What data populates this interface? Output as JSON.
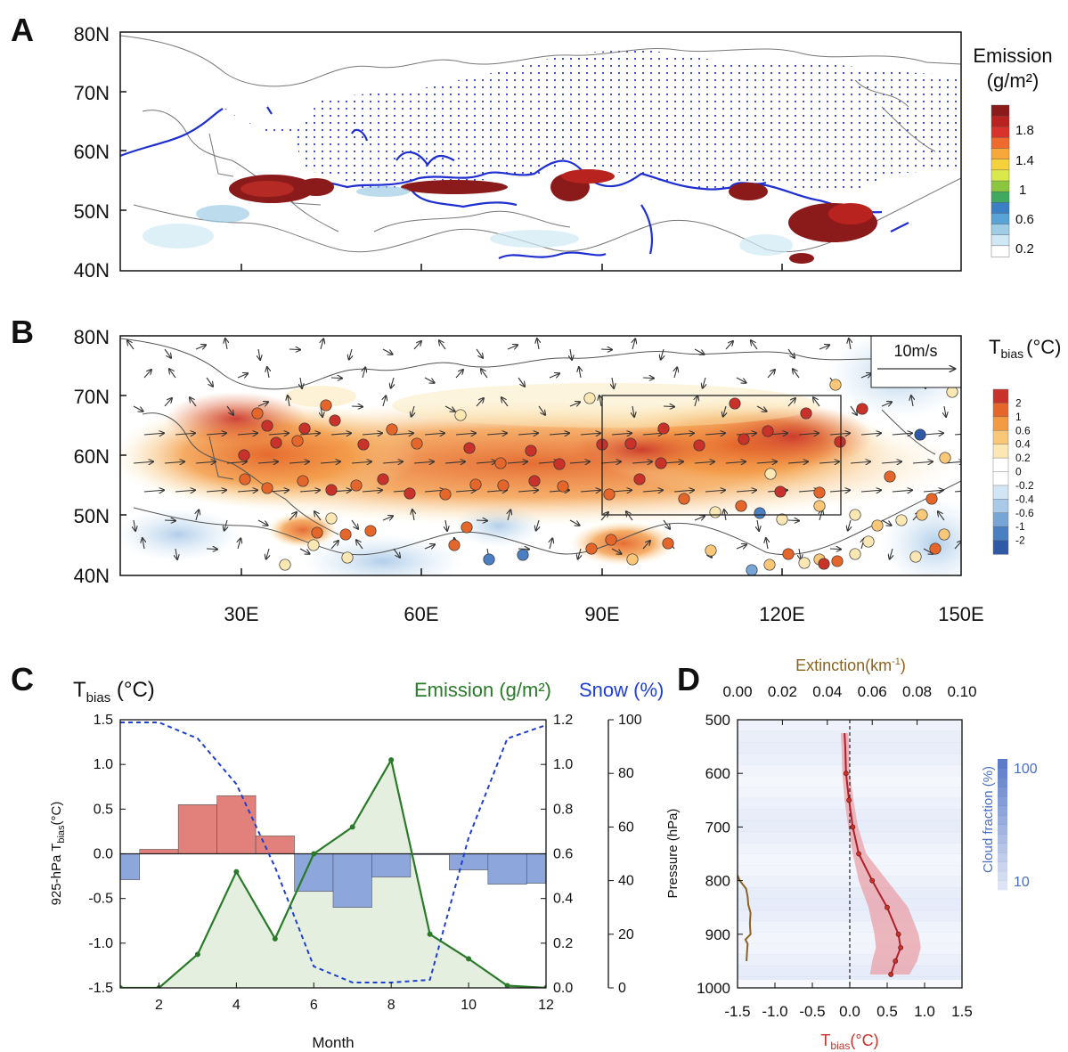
{
  "panel_letters": [
    "A",
    "B",
    "C",
    "D"
  ],
  "colors": {
    "emission_colorbar": [
      "#ffffff",
      "#cfe8f3",
      "#9fcde6",
      "#5aa3d6",
      "#3b7fc4",
      "#41a85f",
      "#8cc63f",
      "#d9e84a",
      "#f5d23c",
      "#f7a83a",
      "#ee6a2d",
      "#d8322a",
      "#b8231f",
      "#8b1a1a"
    ],
    "tbias_colorbar": [
      "#2d59a6",
      "#4a7fc1",
      "#77a5d6",
      "#a9c9e8",
      "#d2e5f4",
      "#ffffff",
      "#ffffff",
      "#fbe7b3",
      "#f8c778",
      "#f39a45",
      "#e4662a",
      "#c8322a"
    ],
    "snow_line": "#1f3fd1",
    "emission_line": "#2a7a2a",
    "emission_fill": "#e4efe0",
    "bar_pos": "#e2807b",
    "bar_neg": "#8da6dc",
    "profile_line": "#b0202a",
    "profile_band": "#eaa0a8",
    "extinction_line": "#8a6420",
    "cloud_bg": "#c9d5f2"
  },
  "map_a": {
    "lat_labels": [
      "80N",
      "70N",
      "60N",
      "50N",
      "40N"
    ],
    "colorbar_title": "Emission",
    "colorbar_unit": "(g/m²)",
    "colorbar_ticks": [
      "1.8",
      "1.4",
      "1",
      "0.6",
      "0.2"
    ]
  },
  "map_b": {
    "lat_labels": [
      "80N",
      "70N",
      "60N",
      "50N",
      "40N"
    ],
    "lon_labels": [
      "30E",
      "60E",
      "90E",
      "120E",
      "150E"
    ],
    "colorbar_title": "T",
    "colorbar_sub": "bias",
    "colorbar_unit": "(°C)",
    "colorbar_ticks": [
      "2",
      "1",
      "0.6",
      "0.4",
      "0.2",
      "0",
      "-0.2",
      "-0.4",
      "-0.6",
      "-1",
      "-2"
    ],
    "vector_key": "10m/s"
  },
  "chart_data": [
    {
      "type": "bar",
      "panel": "C",
      "xlabel": "Month",
      "ylabel": "925-hPa T",
      "ylabel_sub": "bias",
      "ylabel_unit": "(°C)",
      "title_left": "T",
      "title_left_sub": "bias",
      "title_left_unit": " (°C)",
      "title_emission": "Emission (g/m²)",
      "title_snow": "Snow (%)",
      "x_ticks": [
        "2",
        "4",
        "6",
        "8",
        "10",
        "12"
      ],
      "y_left_ticks": [
        "1.5",
        "1.0",
        "0.5",
        "0.0",
        "-0.5",
        "-1.0",
        "-1.5"
      ],
      "y_mid_ticks": [
        "1.2",
        "1.0",
        "0.8",
        "0.6",
        "0.4",
        "0.2",
        "0.0"
      ],
      "y_right_ticks": [
        "100",
        "80",
        "60",
        "40",
        "20",
        "0"
      ],
      "ylim_left": [
        -1.5,
        1.5
      ],
      "ylim_emission": [
        0.0,
        1.2
      ],
      "ylim_snow": [
        0,
        100
      ],
      "xlim": [
        1,
        12
      ],
      "months": [
        1,
        2,
        3,
        4,
        5,
        6,
        7,
        8,
        9,
        10,
        11,
        12
      ],
      "series": [
        {
          "name": "T",
          "values": [
            -0.29,
            0.05,
            0.55,
            0.65,
            0.2,
            -0.42,
            -0.6,
            -0.26,
            -0.01,
            -0.18,
            -0.34,
            -0.33
          ]
        },
        {
          "name": "Emission",
          "values": [
            0.0,
            0.0,
            0.15,
            0.52,
            0.22,
            0.6,
            0.72,
            1.02,
            0.24,
            0.13,
            0.01,
            0.0
          ]
        },
        {
          "name": "Snow",
          "values": [
            99,
            99,
            93,
            76,
            45,
            8,
            2,
            2,
            3,
            56,
            93,
            98
          ]
        }
      ]
    },
    {
      "type": "line",
      "panel": "D",
      "top_axis_title": "Extinction(km",
      "top_axis_sup": "-1",
      "top_axis_close": ")",
      "ylabel": "Pressure (hPa)",
      "xlabel": "T",
      "xlabel_sub": "bias",
      "xlabel_unit": "(°C)",
      "cloud_label": "Cloud fraction (%)",
      "cloud_ticks": [
        "100",
        "10"
      ],
      "top_ticks": [
        "0.00",
        "0.02",
        "0.04",
        "0.06",
        "0.08",
        "0.10"
      ],
      "bottom_ticks": [
        "-1.5",
        "-1.0",
        "-0.5",
        "0.0",
        "0.5",
        "1.0",
        "1.5"
      ],
      "y_ticks": [
        "500",
        "600",
        "700",
        "800",
        "900",
        "1000"
      ],
      "xlim": [
        -1.5,
        1.5
      ],
      "ylim": [
        500,
        1000
      ],
      "xlim_extinction": [
        0.0,
        0.1
      ],
      "profile": {
        "pressure": [
          525,
          550,
          600,
          650,
          700,
          750,
          800,
          850,
          900,
          925,
          950,
          975
        ],
        "tbias": [
          -0.07,
          -0.06,
          -0.05,
          -0.01,
          0.04,
          0.12,
          0.3,
          0.5,
          0.65,
          0.68,
          0.61,
          0.55
        ],
        "lower": [
          -0.12,
          -0.11,
          -0.1,
          -0.07,
          -0.02,
          0.04,
          0.12,
          0.25,
          0.33,
          0.35,
          0.3,
          0.27
        ],
        "upper": [
          -0.02,
          -0.01,
          0.0,
          0.05,
          0.11,
          0.22,
          0.5,
          0.78,
          0.92,
          0.95,
          0.9,
          0.8
        ]
      },
      "extinction": {
        "pressure": [
          790,
          800,
          815,
          830,
          845,
          860,
          880,
          900,
          910,
          918,
          935,
          950
        ],
        "values": [
          0.0,
          0.001,
          0.0038,
          0.0045,
          0.0048,
          0.0058,
          0.0055,
          0.0058,
          0.0035,
          0.0045,
          0.0042,
          0.004
        ]
      }
    }
  ]
}
